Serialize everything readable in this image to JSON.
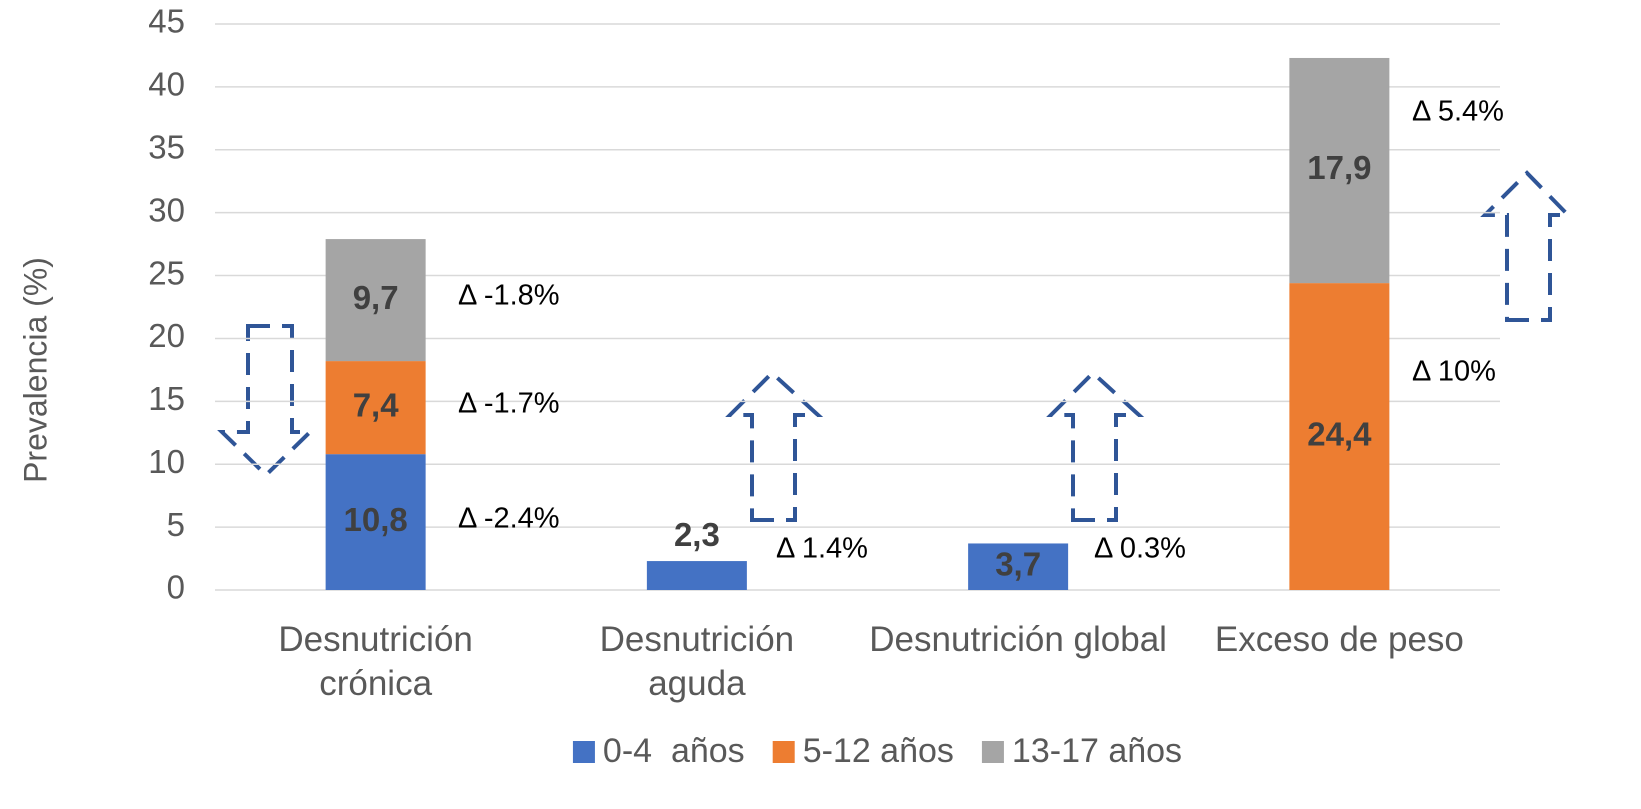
{
  "chart_data": {
    "type": "stacked_bar",
    "y_label": "Prevalencia (%)",
    "categories": [
      "Desnutrición crónica",
      "Desnutrición aguda",
      "Desnutrición global",
      "Exceso de peso"
    ],
    "series": [
      {
        "name": "0-4  años",
        "color": "#4472c4",
        "values": [
          10.8,
          2.3,
          3.7,
          null
        ],
        "value_labels": [
          "10,8",
          "2,3",
          "3,7",
          null
        ]
      },
      {
        "name": "5-12 años",
        "color": "#ed7d31",
        "values": [
          7.4,
          null,
          null,
          24.4
        ],
        "value_labels": [
          "7,4",
          null,
          null,
          "24,4"
        ]
      },
      {
        "name": "13-17 años",
        "color": "#a5a5a5",
        "values": [
          9.7,
          null,
          null,
          17.9
        ],
        "value_labels": [
          "9,7",
          null,
          null,
          "17,9"
        ]
      }
    ],
    "annotations": [
      "Δ -2.4%",
      "Δ -1.7%",
      "Δ -1.8%",
      "Δ 1.4%",
      "Δ 0.3%",
      "Δ 10%",
      "Δ 5.4%"
    ],
    "ylim": [
      0,
      45
    ],
    "yticks": [
      0,
      5,
      10,
      15,
      20,
      25,
      30,
      35,
      40,
      45
    ],
    "grid": true,
    "legend": "bottom"
  }
}
